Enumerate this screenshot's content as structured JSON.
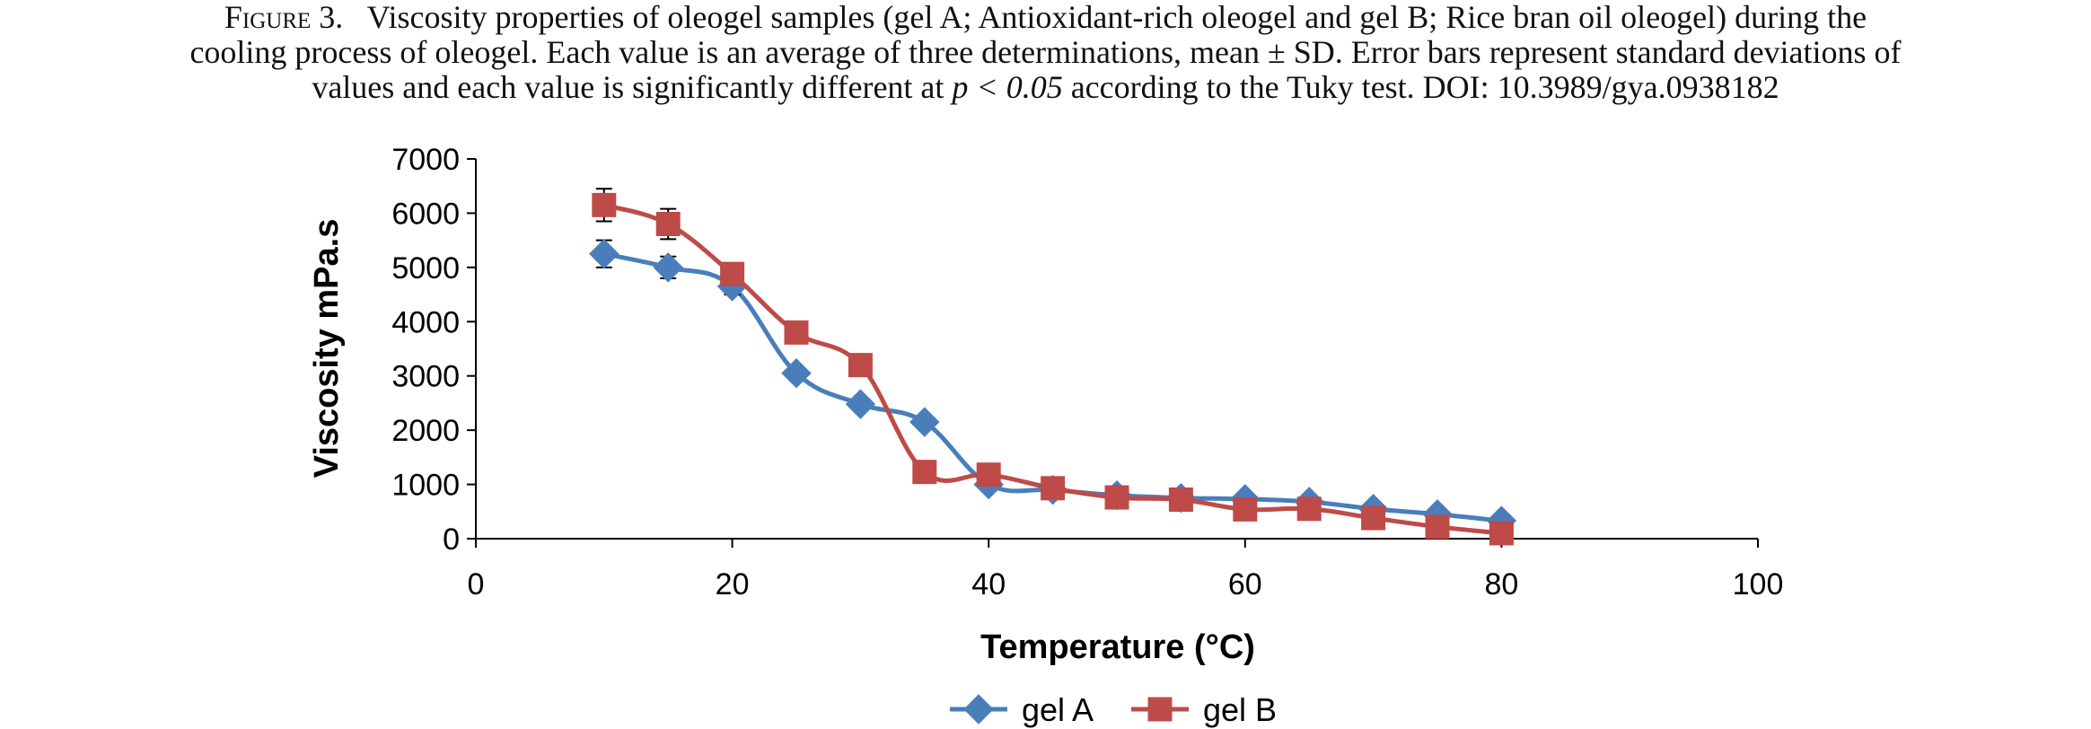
{
  "caption": {
    "figure_label": "Figure 3.",
    "line1_rest": "Viscosity properties of oleogel samples (gel A; Antioxidant-rich oleogel and gel B; Rice bran oil oleogel) during the",
    "line2": "cooling process of oleogel. Each value is an average of three determinations, mean ± SD. Error bars represent standard deviations of",
    "line3_pre": "values and each value is significantly different at",
    "line3_math": "p < 0.05",
    "line3_post": "according to the Tuky test. DOI: 10.3989/gya.0938182"
  },
  "chart_data": {
    "type": "line",
    "smooth": true,
    "xlabel": "Temperature (°C)",
    "ylabel": "Viscosity mPa.s",
    "xlim": [
      0,
      100
    ],
    "ylim": [
      0,
      7000
    ],
    "x_ticks": [
      0,
      20,
      40,
      60,
      80,
      100
    ],
    "y_ticks": [
      0,
      1000,
      2000,
      3000,
      4000,
      5000,
      6000,
      7000
    ],
    "grid": false,
    "legend_position": "bottom",
    "x": [
      10,
      15,
      20,
      25,
      30,
      35,
      40,
      45,
      50,
      55,
      60,
      65,
      70,
      75,
      80
    ],
    "series": [
      {
        "name": "gel A",
        "color": "#4a7ebb",
        "marker": "diamond",
        "values": [
          5250,
          5000,
          4650,
          3050,
          2480,
          2150,
          1000,
          900,
          800,
          750,
          730,
          680,
          550,
          450,
          330
        ],
        "errors": [
          250,
          200,
          150,
          0,
          0,
          0,
          0,
          0,
          0,
          0,
          0,
          0,
          0,
          0,
          0
        ]
      },
      {
        "name": "gel B",
        "color": "#be4b48",
        "marker": "square",
        "values": [
          6150,
          5800,
          4880,
          3800,
          3200,
          1230,
          1180,
          930,
          760,
          720,
          540,
          550,
          380,
          220,
          100
        ],
        "errors": [
          300,
          280,
          200,
          0,
          0,
          0,
          0,
          0,
          0,
          0,
          0,
          0,
          0,
          0,
          0
        ]
      }
    ]
  }
}
